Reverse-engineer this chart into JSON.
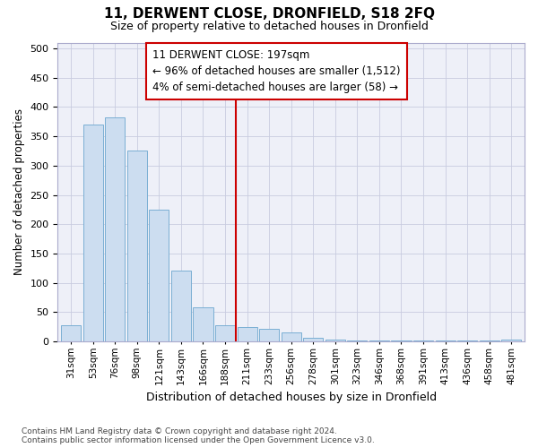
{
  "title": "11, DERWENT CLOSE, DRONFIELD, S18 2FQ",
  "subtitle": "Size of property relative to detached houses in Dronfield",
  "xlabel": "Distribution of detached houses by size in Dronfield",
  "ylabel": "Number of detached properties",
  "bar_labels": [
    "31sqm",
    "53sqm",
    "76sqm",
    "98sqm",
    "121sqm",
    "143sqm",
    "166sqm",
    "188sqm",
    "211sqm",
    "233sqm",
    "256sqm",
    "278sqm",
    "301sqm",
    "323sqm",
    "346sqm",
    "368sqm",
    "391sqm",
    "413sqm",
    "436sqm",
    "458sqm",
    "481sqm"
  ],
  "bar_values": [
    28,
    370,
    382,
    326,
    225,
    121,
    58,
    28,
    25,
    22,
    16,
    6,
    3,
    2,
    1,
    1,
    1,
    1,
    1,
    1,
    3
  ],
  "bar_color": "#ccddf0",
  "bar_edge_color": "#7aafd4",
  "property_line_x": 7.5,
  "annotation_line1": "11 DERWENT CLOSE: 197sqm",
  "annotation_line2": "← 96% of detached houses are smaller (1,512)",
  "annotation_line3": "4% of semi-detached houses are larger (58) →",
  "vline_color": "#cc0000",
  "ylim": [
    0,
    510
  ],
  "yticks": [
    0,
    50,
    100,
    150,
    200,
    250,
    300,
    350,
    400,
    450,
    500
  ],
  "footnote1": "Contains HM Land Registry data © Crown copyright and database right 2024.",
  "footnote2": "Contains public sector information licensed under the Open Government Licence v3.0.",
  "bg_color": "#eef0f8",
  "grid_color": "#c8cce0"
}
